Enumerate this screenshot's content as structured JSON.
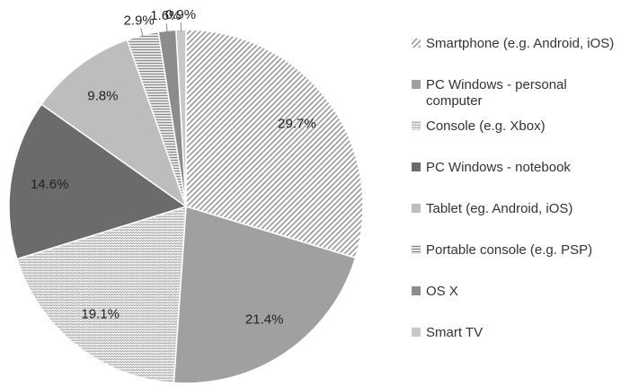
{
  "chart_data": {
    "type": "pie",
    "categories": [
      "Smartphone (e.g. Android, iOS)",
      "PC Windows - personal computer",
      "Console (e.g. Xbox)",
      "PC Windows - notebook",
      "Tablet (eg. Android, iOS)",
      "Portable console (e.g. PSP)",
      "OS X",
      "Smart TV"
    ],
    "values": [
      29.7,
      21.4,
      19.1,
      14.6,
      9.8,
      2.9,
      1.6,
      0.9
    ],
    "value_labels": [
      "29.7%",
      "21.4%",
      "19.1%",
      "14.6%",
      "9.8%",
      "2.9%",
      "1.6%",
      "0.9%"
    ],
    "colors": [
      "#9a9a9a",
      "#a0a0a0",
      "#b0b0b0",
      "#6b6b6b",
      "#bdbdbd",
      "#8a8a8a",
      "#8c8c8c",
      "#c8c8c8"
    ],
    "patterns": [
      "diagonal",
      "solid",
      "zigzag",
      "solid",
      "solid",
      "horizontal",
      "solid",
      "solid"
    ],
    "legend": "right"
  }
}
